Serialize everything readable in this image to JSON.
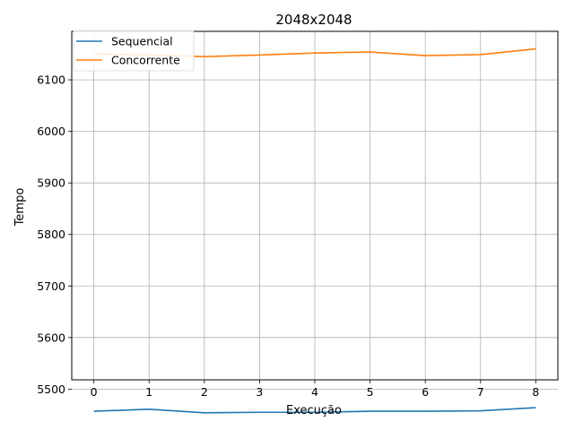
{
  "chart_data": {
    "type": "line",
    "title": "2048x2048",
    "xlabel": "Execução",
    "ylabel": "Tempo",
    "x": [
      0,
      1,
      2,
      3,
      4,
      5,
      6,
      7,
      8
    ],
    "xlim": [
      -0.4,
      8.4
    ],
    "ylim": [
      5518,
      6194
    ],
    "xticks": [
      0,
      1,
      2,
      3,
      4,
      5,
      6,
      7,
      8
    ],
    "yticks": [
      5500,
      5600,
      5700,
      5800,
      5900,
      6000,
      6100
    ],
    "grid": true,
    "legend_position": "top-left",
    "series": [
      {
        "name": "Sequencial",
        "color": "#1f77b4",
        "values": [
          5457,
          5461,
          5454,
          5455,
          5455,
          5457,
          5457,
          5458,
          5464
        ]
      },
      {
        "name": "Concorrente",
        "color": "#ff7f0e",
        "values": [
          6150,
          6148,
          6145,
          6148,
          6152,
          6154,
          6147,
          6149,
          6160
        ]
      }
    ]
  }
}
